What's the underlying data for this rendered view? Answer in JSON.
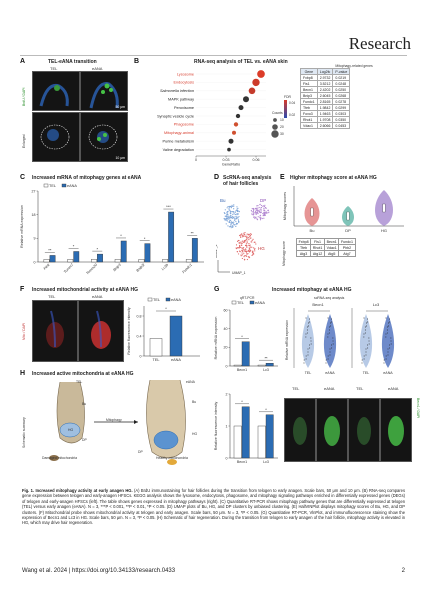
{
  "masthead": {
    "journal": "Research"
  },
  "panels": {
    "a": {
      "letter": "A",
      "title": "TEL-eANA transition",
      "col1": "TEL",
      "col2": "eANA",
      "row_label": "BrdU / DAPI",
      "row2_label": "Enlarged",
      "scale1": "50 μm",
      "scale2": "10 μm"
    },
    "b": {
      "letter": "B",
      "title": "RNA-seq analysis of TEL vs. eANA skin",
      "pathways": [
        "Lysosome",
        "Endocytosis",
        "Salmonella infection",
        "MAPK pathway",
        "Peroxisome",
        "Synaptic vesicle cycle",
        "Phagosome",
        "Mitophagy-animal",
        "Purine metabolism",
        "Valine degradation"
      ],
      "xlabel": "GeneRatio",
      "xticks": [
        "0",
        "0.03",
        "0.06"
      ],
      "size_title": "Counts",
      "fdr_title": "FDR",
      "size_labels": [
        "10",
        "20",
        "30"
      ],
      "fdr_ticks": [
        "0.04",
        "0.02"
      ],
      "table_title": "Mitophagy-related genes",
      "table_headers": [
        "Gene",
        "Log2fc",
        "P-value"
      ],
      "table_rows": [
        [
          "Fxbp8",
          "2.9732",
          "0.0219"
        ],
        [
          "Fis1",
          "3.5212",
          "0.0248"
        ],
        [
          "Becn1",
          "2.4202",
          "0.0250"
        ],
        [
          "Bnip3",
          "2.6045",
          "0.0268"
        ],
        [
          "Fundc1",
          "2.8165",
          "0.0278"
        ],
        [
          "Tfeb",
          "1.9842",
          "0.0299"
        ],
        [
          "Foxo3",
          "1.9463",
          "0.0303"
        ],
        [
          "Rhot1",
          "1.9708",
          "0.0350"
        ],
        [
          "Vdac1",
          "2.6066",
          "0.0453"
        ]
      ]
    },
    "c": {
      "letter": "C",
      "title": "Increased mRNA of mitophagy genes at eANA",
      "ylabel": "Relative mRNA expression",
      "legend": [
        "TEL",
        "eANA"
      ],
      "genes": [
        "Pink",
        "Tomm7",
        "Tomm20",
        "Bnip3",
        "Bnip3l",
        "Lc3b",
        "Fundc1"
      ],
      "yticks": [
        "0",
        "9",
        "18",
        "27"
      ],
      "sig": [
        "**",
        "*",
        "*",
        "*",
        "*",
        "***",
        "**"
      ]
    },
    "d": {
      "letter": "D",
      "title": "ScRNA-seq analysis of hair follicles",
      "clusters": [
        "Bu",
        "DP",
        "HG"
      ],
      "xlabel": "UMAP_1",
      "ylabel": "UMAP_2"
    },
    "e": {
      "letter": "E",
      "title": "Higher mitophagy score at eANA HG",
      "groups": [
        "Bu",
        "DP",
        "HG"
      ],
      "ylabel": "Mitophagy scores",
      "sublabel": "Mitophagy score",
      "genes": [
        [
          "Fxbp8",
          "Fis1",
          "Becn1",
          "Fundc1"
        ],
        [
          "Tfeb",
          "Rhot1",
          "Vdac1",
          "Phb2"
        ],
        [
          "Atg3",
          "Atg12",
          "Atg5",
          "Atg7"
        ]
      ]
    },
    "f": {
      "letter": "F",
      "title": "Increased mitochondrial activity at eANA HG",
      "col1": "TEL",
      "col2": "eANA",
      "row_label": "Mito / DAPI",
      "ylabel": "Relative fluorescence intensity",
      "legend": [
        "TEL",
        "eANA"
      ],
      "yticks": [
        "0",
        "0.4",
        "0.8"
      ],
      "sig": "*"
    },
    "g": {
      "letter": "G",
      "title": "Increased mitophagy at eANA HG",
      "sub1": "qRT-PCR",
      "sub2": "scRNA-seq analysis",
      "legend": [
        "TEL",
        "eANA"
      ],
      "cats": [
        "Becn1",
        "Lc3"
      ],
      "yticks": [
        "0",
        "20",
        "40",
        "60"
      ],
      "sig": [
        "*",
        "**"
      ],
      "ylabel": "Relative mRNA expression",
      "violin_titles": [
        "Becn1",
        "Lc3"
      ],
      "violin_ylabel": "Relative mRNA expression",
      "violin_groups": [
        "TEL",
        "eANA"
      ],
      "if_headers": [
        "TEL",
        "eANA",
        "TEL",
        "eANA"
      ],
      "if_row": "Becn1 / DAPI",
      "if_ylabel": "Relative fluorescence intensity",
      "if_yticks": [
        "0",
        "1",
        "2"
      ],
      "if_sig": [
        "*",
        "*"
      ]
    },
    "h": {
      "letter": "H",
      "title": "Increased active mitochondria at eANA HG",
      "side": "Schematic summary",
      "tel": "TEL",
      "eana": "eANA",
      "labels": [
        "Bu",
        "HG",
        "DP",
        "Bu",
        "HG",
        "DP"
      ],
      "mitophagy": "Mitophagy",
      "damaged": "Damaged mitochondria",
      "healthy": "Healthy mitochondria"
    }
  },
  "caption": {
    "lead": "Fig. 1.",
    "head": " Increased mitophagy activity at early anagen HG.",
    "body": " (A) BrdU immunostaining for hair follicles during the transition from telogen to early anagen. Scale bars, 50 μm and 10 μm. (B) RNA-seq compares gene expression between telogen and early-anagen HFSCs. KEGG analysis shows the lysosome, endocytosis, phagosome, and mitophagy signaling pathways enriched in differentially expressed genes (DEGs) of telogen and early-anagen HFSCs (left). The table shows genes expressed in mitophagy pathways (right). (C) Quantitative RT-PCR shows mitophagy pathway genes that are differentially expressed at telogen (TEL) versus early anagen (eANA). N = 3, ***P < 0.001, **P < 0.01, *P < 0.05. (D) UMAP plots of Bu, HG, and DP clusters by unbiased clustering. (E) HallVINPlot displays mitophagy scores of Bu, HG, and DP clusters. (F) Mitochondrial probe shows mitochondrial activity at telogen and early anagen. Scale bars, 50 μm. N = 3, *P < 0.05. (G) Quantitative RT-PCR, VlnPlot, and immunofluorescence staining show the expression of Becn1 and Lc3 in HG. Scale bars, 50 μm. N = 3, *P < 0.05. (H) Schematic of hair regeneration. During the transition from telogen to early anagen of the hair follicle, mitophagy activity is elevated in HG, which may drive hair regeneration."
  },
  "footer": {
    "citation": "Wang et al. 2024 | https://doi.org/10.34133/research.0433",
    "page": "2"
  },
  "colors": {
    "tel": "#ffffff",
    "eana": "#2b6cb3",
    "red": "#d63b2b",
    "dotdark": "#333333"
  },
  "chart_data": [
    {
      "type": "scatter",
      "title": "RNA-seq analysis of TEL vs. eANA skin",
      "xlabel": "GeneRatio",
      "categories": [
        "Lysosome",
        "Endocytosis",
        "Salmonella infection",
        "MAPK pathway",
        "Peroxisome",
        "Synaptic vesicle cycle",
        "Phagosome",
        "Mitophagy-animal",
        "Purine metabolism",
        "Valine degradation"
      ],
      "x": [
        0.065,
        0.06,
        0.056,
        0.05,
        0.045,
        0.042,
        0.04,
        0.038,
        0.035,
        0.033
      ],
      "counts": [
        34,
        32,
        28,
        24,
        18,
        14,
        14,
        12,
        18,
        10
      ],
      "fdr": [
        0.005,
        0.008,
        0.01,
        0.015,
        0.02,
        0.025,
        0.028,
        0.03,
        0.035,
        0.04
      ]
    },
    {
      "type": "bar",
      "title": "Increased mRNA of mitophagy genes at eANA",
      "ylabel": "Relative mRNA expression",
      "categories": [
        "Pink",
        "Tomm7",
        "Tomm20",
        "Bnip3",
        "Bnip3l",
        "Lc3b",
        "Fundc1"
      ],
      "ylim": [
        0,
        27
      ],
      "series": [
        {
          "name": "TEL",
          "values": [
            1,
            1,
            1,
            1,
            1,
            1,
            1
          ]
        },
        {
          "name": "eANA",
          "values": [
            2.5,
            4,
            3,
            8,
            7,
            19,
            9
          ]
        }
      ]
    },
    {
      "type": "bar",
      "title": "Increased mitochondrial activity at eANA HG",
      "ylabel": "Relative fluorescence intensity",
      "categories": [
        "TEL",
        "eANA"
      ],
      "ylim": [
        0,
        1.0
      ],
      "values": [
        0.35,
        0.8
      ]
    },
    {
      "type": "bar",
      "title": "qRT-PCR",
      "ylabel": "Relative mRNA expression",
      "categories": [
        "Becn1",
        "Lc3"
      ],
      "ylim": [
        0,
        60
      ],
      "series": [
        {
          "name": "TEL",
          "values": [
            1,
            1
          ]
        },
        {
          "name": "eANA",
          "values": [
            26,
            3
          ]
        }
      ]
    },
    {
      "type": "bar",
      "title": "Relative fluorescence intensity",
      "ylabel": "Relative fluorescence intensity",
      "categories": [
        "Becn1",
        "Lc3"
      ],
      "ylim": [
        0,
        2
      ],
      "series": [
        {
          "name": "TEL",
          "values": [
            1,
            1
          ]
        },
        {
          "name": "eANA",
          "values": [
            1.6,
            1.35
          ]
        }
      ]
    }
  ]
}
